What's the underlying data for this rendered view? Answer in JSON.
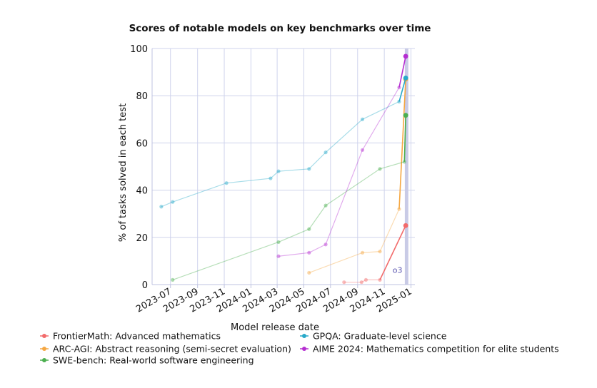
{
  "chart_data": {
    "type": "line",
    "title": "Scores of notable models on key benchmarks over time",
    "xlabel": "Model release date",
    "ylabel": "% of tasks solved in each test",
    "ylim": [
      0,
      100
    ],
    "yticks": [
      0,
      20,
      40,
      60,
      80,
      100
    ],
    "xlim": [
      "2023-05-20",
      "2025-01-10"
    ],
    "xticks": [
      "2023-07",
      "2023-09",
      "2023-11",
      "2024-01",
      "2024-03",
      "2024-05",
      "2024-07",
      "2024-09",
      "2024-11",
      "2025-01"
    ],
    "grid": true,
    "highlight": {
      "start": "2024-12-18",
      "end": "2024-12-26",
      "color": "#c9cbe6"
    },
    "annotations": [
      {
        "text": "o3",
        "x": "2024-11-20",
        "y": 5
      }
    ],
    "legend_position": "bottom",
    "series": [
      {
        "name": "FrontierMath: Advanced mathematics",
        "color": "#f26b6b",
        "points": [
          {
            "x": "2024-08-01",
            "y": 1,
            "faded": true
          },
          {
            "x": "2024-09-10",
            "y": 1,
            "faded": true
          },
          {
            "x": "2024-09-20",
            "y": 2,
            "faded": true
          },
          {
            "x": "2024-10-22",
            "y": 2,
            "faded": true
          },
          {
            "x": "2024-12-20",
            "y": 25,
            "faded": false
          }
        ]
      },
      {
        "name": "ARC-AGI: Abstract reasoning (semi-secret evaluation)",
        "color": "#f5a742",
        "points": [
          {
            "x": "2024-05-13",
            "y": 5,
            "faded": true
          },
          {
            "x": "2024-09-12",
            "y": 13.5,
            "faded": true
          },
          {
            "x": "2024-10-22",
            "y": 14,
            "faded": true
          },
          {
            "x": "2024-12-05",
            "y": 32,
            "faded": true
          },
          {
            "x": "2024-12-20",
            "y": 87,
            "faded": false
          }
        ]
      },
      {
        "name": "SWE-bench: Real-world software engineering",
        "color": "#4caf50",
        "points": [
          {
            "x": "2023-07-06",
            "y": 2,
            "faded": true
          },
          {
            "x": "2024-03-04",
            "y": 18,
            "faded": true
          },
          {
            "x": "2024-05-13",
            "y": 23.5,
            "faded": true
          },
          {
            "x": "2024-06-20",
            "y": 33.5,
            "faded": true
          },
          {
            "x": "2024-10-22",
            "y": 49,
            "faded": true
          },
          {
            "x": "2024-12-17",
            "y": 52,
            "faded": true
          },
          {
            "x": "2024-12-20",
            "y": 71.7,
            "faded": false
          }
        ]
      },
      {
        "name": "GPQA: Graduate-level science",
        "color": "#29a9c9",
        "points": [
          {
            "x": "2023-06-10",
            "y": 33,
            "faded": true
          },
          {
            "x": "2023-07-06",
            "y": 35,
            "faded": true
          },
          {
            "x": "2023-11-06",
            "y": 43,
            "faded": true
          },
          {
            "x": "2024-02-15",
            "y": 45,
            "faded": true
          },
          {
            "x": "2024-03-04",
            "y": 48,
            "faded": true
          },
          {
            "x": "2024-05-13",
            "y": 49,
            "faded": true
          },
          {
            "x": "2024-06-20",
            "y": 56,
            "faded": true
          },
          {
            "x": "2024-09-12",
            "y": 70,
            "faded": true
          },
          {
            "x": "2024-12-05",
            "y": 77.5,
            "faded": true
          },
          {
            "x": "2024-12-20",
            "y": 87.5,
            "faded": false
          }
        ]
      },
      {
        "name": "AIME 2024: Mathematics competition for elite students",
        "color": "#b52ed1",
        "points": [
          {
            "x": "2024-03-04",
            "y": 12,
            "faded": true
          },
          {
            "x": "2024-05-13",
            "y": 13.5,
            "faded": true
          },
          {
            "x": "2024-06-20",
            "y": 17,
            "faded": true
          },
          {
            "x": "2024-09-12",
            "y": 57,
            "faded": true
          },
          {
            "x": "2024-12-05",
            "y": 83.5,
            "faded": true
          },
          {
            "x": "2024-12-20",
            "y": 96.7,
            "faded": false
          }
        ]
      }
    ],
    "legend_order": [
      0,
      3,
      1,
      4,
      2
    ]
  }
}
